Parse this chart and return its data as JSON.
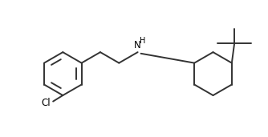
{
  "background_color": "#ffffff",
  "line_color": "#333333",
  "line_width": 1.4,
  "text_color": "#000000",
  "label_NH": "H",
  "label_N": "N",
  "label_Cl": "Cl",
  "figsize": [
    3.34,
    1.71
  ],
  "dpi": 100,
  "xlim": [
    0,
    10
  ],
  "ylim": [
    0.5,
    5.5
  ]
}
